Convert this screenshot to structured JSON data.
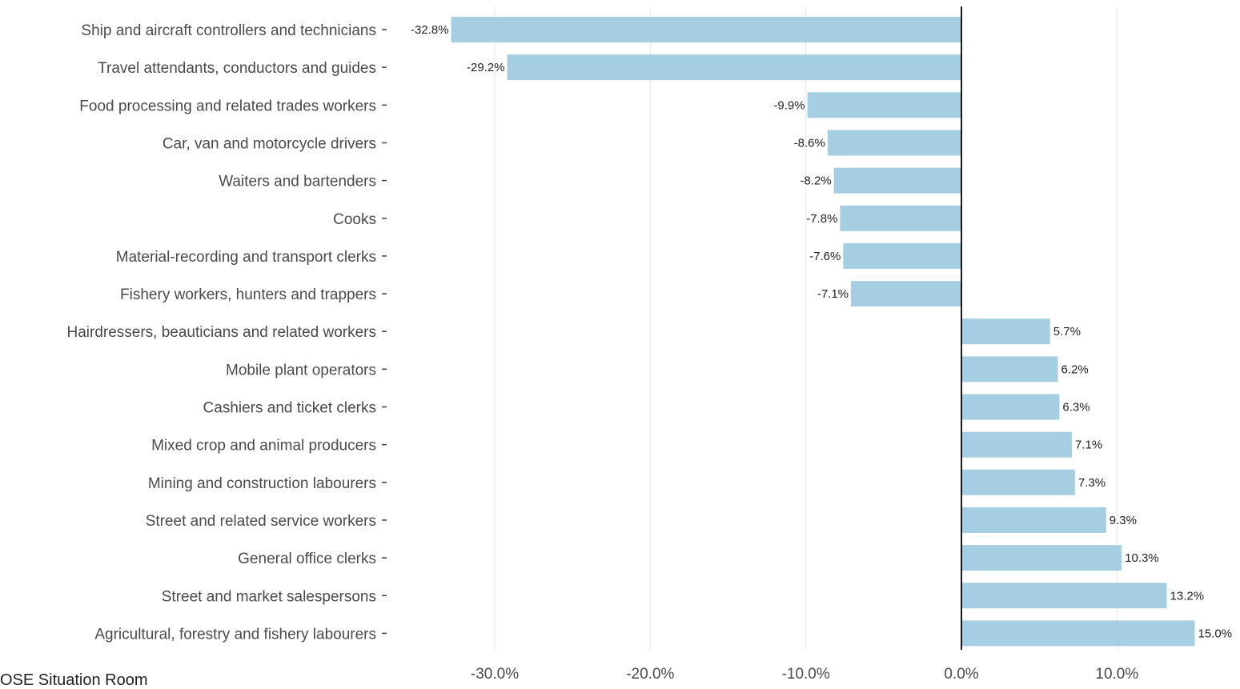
{
  "chart_data": {
    "type": "bar",
    "orientation": "horizontal",
    "title": "",
    "xlabel": "",
    "ylabel": "",
    "categories": [
      "Ship and aircraft controllers and technicians",
      "Travel attendants, conductors and guides",
      "Food processing and related trades workers",
      "Car, van and motorcycle drivers",
      "Waiters and bartenders",
      "Cooks",
      "Material-recording and transport clerks",
      "Fishery workers, hunters and trappers",
      "Hairdressers, beauticians and related workers",
      "Mobile plant operators",
      "Cashiers and ticket clerks",
      "Mixed crop and animal producers",
      "Mining and construction labourers",
      "Street and related service workers",
      "General office clerks",
      "Street and market salespersons",
      "Agricultural, forestry and fishery labourers"
    ],
    "values": [
      -32.8,
      -29.2,
      -9.9,
      -8.6,
      -8.2,
      -7.8,
      -7.6,
      -7.1,
      5.7,
      6.2,
      6.3,
      7.1,
      7.3,
      9.3,
      10.3,
      13.2,
      15.0
    ],
    "value_labels": [
      "-32.8%",
      "-29.2%",
      "-9.9%",
      "-8.6%",
      "-8.2%",
      "-7.8%",
      "-7.6%",
      "-7.1%",
      "5.7%",
      "6.2%",
      "6.3%",
      "7.1%",
      "7.3%",
      "9.3%",
      "10.3%",
      "13.2%",
      "15.0%"
    ],
    "xlim": [
      -35,
      18.5
    ],
    "x_ticks": [
      -30,
      -20,
      -10,
      0,
      10
    ],
    "x_tick_labels": [
      "-30.0%",
      "-20.0%",
      "-10.0%",
      "0.0%",
      "10.0%"
    ],
    "grid": "vertical",
    "legend": "none",
    "bar_color": "#a6cee3",
    "zero_line_color": "#000000",
    "source_note": "OSE Situation Room"
  }
}
